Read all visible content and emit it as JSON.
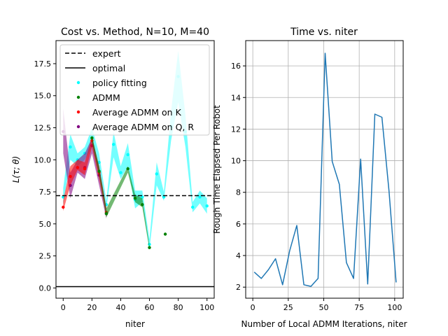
{
  "chart_data": [
    {
      "type": "line",
      "title": "Cost vs. Method, N=10, M=40",
      "xlabel": "niter",
      "ylabel": "L(τ; θ)",
      "xlim": [
        -5,
        105
      ],
      "ylim": [
        -0.8,
        19.3
      ],
      "xticks": [
        0,
        20,
        40,
        60,
        80,
        100
      ],
      "xtick_labels": [
        "0",
        "20",
        "40",
        "60",
        "80",
        "100"
      ],
      "yticks": [
        0,
        2.5,
        5,
        7.5,
        10,
        12.5,
        15,
        17.5
      ],
      "ytick_labels": [
        "0.0",
        "2.5",
        "5.0",
        "7.5",
        "10.0",
        "12.5",
        "15.0",
        "17.5"
      ],
      "grid": false,
      "legend": "upper left",
      "legend_entries": [
        {
          "label": "expert",
          "style": "dashed",
          "color": "#000000"
        },
        {
          "label": "optimal",
          "style": "solid",
          "color": "#000000"
        },
        {
          "label": "policy fitting",
          "style": "dot",
          "color": "#00ffff"
        },
        {
          "label": "ADMM",
          "style": "dot",
          "color": "#008000"
        },
        {
          "label": "Average ADMM on K",
          "style": "dot",
          "color": "#ff0000"
        },
        {
          "label": "Average ADMM on Q, R",
          "style": "dot",
          "color": "#800080"
        }
      ],
      "hlines": [
        {
          "name": "expert",
          "y": 7.2,
          "style": "dashed",
          "color": "#000000"
        },
        {
          "name": "optimal",
          "y": 0.1,
          "style": "solid",
          "color": "#000000"
        }
      ],
      "bands": [
        {
          "name": "policy fitting",
          "color": "#00ffff",
          "x": [
            0,
            5,
            10,
            15,
            20,
            25,
            30,
            35,
            40,
            45,
            50,
            55,
            60,
            65,
            70,
            75,
            80,
            85,
            90,
            95,
            100
          ],
          "lower": [
            6.5,
            10.0,
            9.5,
            10.0,
            11.0,
            9.0,
            6.2,
            10.2,
            8.5,
            9.5,
            6.2,
            6.7,
            3.0,
            8.0,
            6.8,
            11.5,
            14.5,
            11.0,
            5.9,
            6.6,
            5.8
          ],
          "upper": [
            7.8,
            12.0,
            10.5,
            11.0,
            12.5,
            10.5,
            6.8,
            12.2,
            9.5,
            11.3,
            7.6,
            7.6,
            3.8,
            9.8,
            7.5,
            13.8,
            18.5,
            13.5,
            6.7,
            7.6,
            7.0
          ],
          "points": [
            7.1,
            11.0,
            10.0,
            10.5,
            11.7,
            9.8,
            6.5,
            11.2,
            9.0,
            10.4,
            6.9,
            7.1,
            3.4,
            8.9,
            7.1,
            12.6,
            16.5,
            12.2,
            6.3,
            7.1,
            6.4
          ]
        },
        {
          "name": "Average ADMM on Q, R",
          "color": "#800080",
          "x": [
            0,
            5,
            10,
            15,
            20,
            25,
            30
          ],
          "lower": [
            10.5,
            7.0,
            9.0,
            8.5,
            10.5,
            8.0,
            5.4
          ],
          "upper": [
            14.0,
            9.0,
            10.0,
            10.5,
            11.7,
            9.5,
            6.2
          ],
          "points": [
            12.2,
            8.0,
            9.4,
            9.4,
            11.1,
            8.8,
            5.8
          ]
        },
        {
          "name": "Average ADMM on K",
          "color": "#ff0000",
          "x": [
            0,
            5,
            10,
            15,
            20,
            25,
            30
          ],
          "lower": [
            6.0,
            8.0,
            9.2,
            8.8,
            11.0,
            8.5,
            5.6
          ],
          "upper": [
            6.8,
            9.5,
            10.0,
            9.8,
            11.8,
            9.5,
            6.3
          ],
          "points": [
            6.3,
            8.7,
            9.4,
            9.3,
            11.5,
            9.0,
            5.9
          ]
        },
        {
          "name": "ADMM",
          "color": "#008000",
          "x": [
            20,
            25,
            30,
            45,
            50,
            55,
            60
          ],
          "lower": [
            11.4,
            8.8,
            5.5,
            9.0,
            6.7,
            6.3,
            3.0
          ],
          "upper": [
            11.9,
            9.4,
            6.2,
            9.5,
            7.3,
            7.0,
            3.3
          ],
          "points": [
            11.7,
            9.1,
            5.8,
            9.3,
            7.0,
            6.5,
            3.15
          ]
        }
      ],
      "scatter": [
        {
          "name": "ADMM",
          "color": "#008000",
          "x": [
            71
          ],
          "y": [
            4.2
          ]
        }
      ]
    },
    {
      "type": "line",
      "title": "Time vs. niter",
      "xlabel": "Number of Local ADMM Iterations, niter",
      "ylabel": "Rough Time Elapsed Per Robot",
      "xlim": [
        -5,
        106
      ],
      "ylim": [
        1.3,
        17.6
      ],
      "xticks": [
        0,
        25,
        50,
        75,
        100
      ],
      "xtick_labels": [
        "0",
        "25",
        "50",
        "75",
        "100"
      ],
      "yticks": [
        2,
        4,
        6,
        8,
        10,
        12,
        14,
        16
      ],
      "ytick_labels": [
        "2",
        "4",
        "6",
        "8",
        "10",
        "12",
        "14",
        "16"
      ],
      "grid": true,
      "series": [
        {
          "color": "#1f77b4",
          "x": [
            1,
            6,
            11,
            16,
            21,
            26,
            31,
            36,
            41,
            46,
            51,
            56,
            61,
            66,
            71,
            76,
            81,
            86,
            91,
            96,
            101
          ],
          "y": [
            2.95,
            2.55,
            3.1,
            3.8,
            2.15,
            4.3,
            5.9,
            2.15,
            2.05,
            2.55,
            16.8,
            9.95,
            8.5,
            3.55,
            2.55,
            10.1,
            2.2,
            12.95,
            12.75,
            8.1,
            2.3
          ]
        }
      ]
    }
  ]
}
